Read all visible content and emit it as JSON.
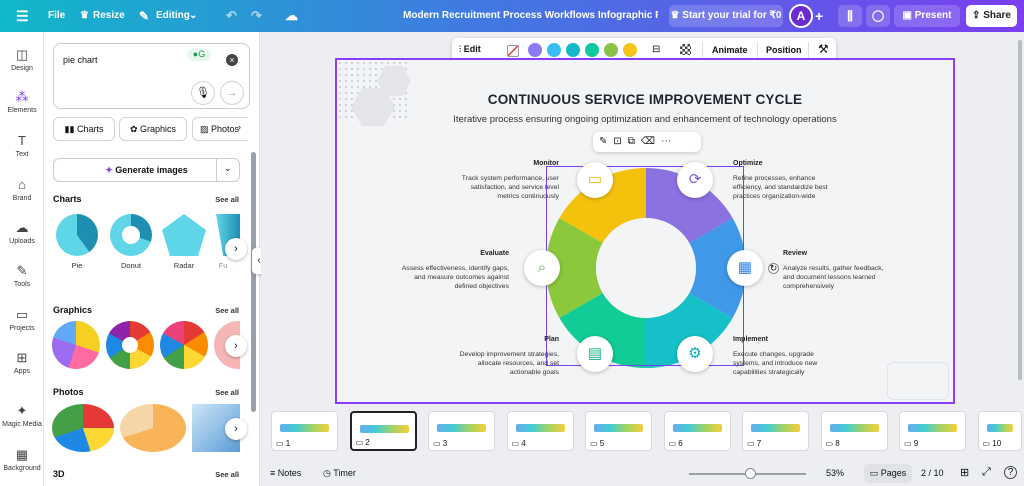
{
  "topbar": {
    "file": "File",
    "resize": "Resize",
    "editing": "Editing",
    "title": "Modern Recruitment Process Workflows Infographic Presen...",
    "trial": "Start your trial for ₹0",
    "avatar": "A",
    "present": "Present",
    "share": "Share"
  },
  "rail": [
    "Design",
    "Elements",
    "Text",
    "Brand",
    "Uploads",
    "Tools",
    "Projects",
    "Apps",
    "Magic Media",
    "Background"
  ],
  "panel": {
    "search_value": "pie chart",
    "tabs": [
      "Charts",
      "Graphics",
      "Photos"
    ],
    "generate": "Generate images",
    "charts": {
      "title": "Charts",
      "see_all": "See all",
      "items": [
        "Pie",
        "Donut",
        "Radar",
        "Fu"
      ]
    },
    "graphics": {
      "title": "Graphics",
      "see_all": "See all"
    },
    "photos": {
      "title": "Photos",
      "see_all": "See all"
    },
    "three_d": {
      "title": "3D",
      "see_all": "See all"
    }
  },
  "toolbar": {
    "edit": "Edit",
    "animate": "Animate",
    "position": "Position",
    "swatches": [
      "#8b7cf6",
      "#38bdf8",
      "#14b8c6",
      "#10c9a0",
      "#8bc34a",
      "#f5c518"
    ]
  },
  "slide": {
    "title": "CONTINUOUS SERVICE IMPROVEMENT CYCLE",
    "subtitle": "Iterative process ensuring ongoing optimization and enhancement of technology operations",
    "stages": [
      {
        "name": "Monitor",
        "text": "Track system performance, user satisfaction, and service level metrics continuously"
      },
      {
        "name": "Optimize",
        "text": "Refine processes, enhance efficiency, and standardize best practices organization-wide"
      },
      {
        "name": "Evaluate",
        "text": "Assess effectiveness, identify gaps, and measure outcomes against defined objectives"
      },
      {
        "name": "Review",
        "text": "Analyze results, gather feedback, and document lessons learned comprehensively"
      },
      {
        "name": "Plan",
        "text": "Develop improvement strategies, allocate resources, and set actionable goals"
      },
      {
        "name": "Implement",
        "text": "Execute changes, upgrade systems, and introduce new capabilities strategically"
      }
    ],
    "ring_colors": [
      "#8b72e0",
      "#3f98e8",
      "#16c0c8",
      "#11cc96",
      "#8cc83c",
      "#f4c20d"
    ]
  },
  "pages": {
    "numbers": [
      "1",
      "2",
      "3",
      "4",
      "5",
      "6",
      "7",
      "8",
      "9",
      "10"
    ]
  },
  "status": {
    "notes": "Notes",
    "timer": "Timer",
    "zoom": "53%",
    "zoom_level": 0.53,
    "pages": "Pages",
    "page_count": "2 / 10"
  }
}
